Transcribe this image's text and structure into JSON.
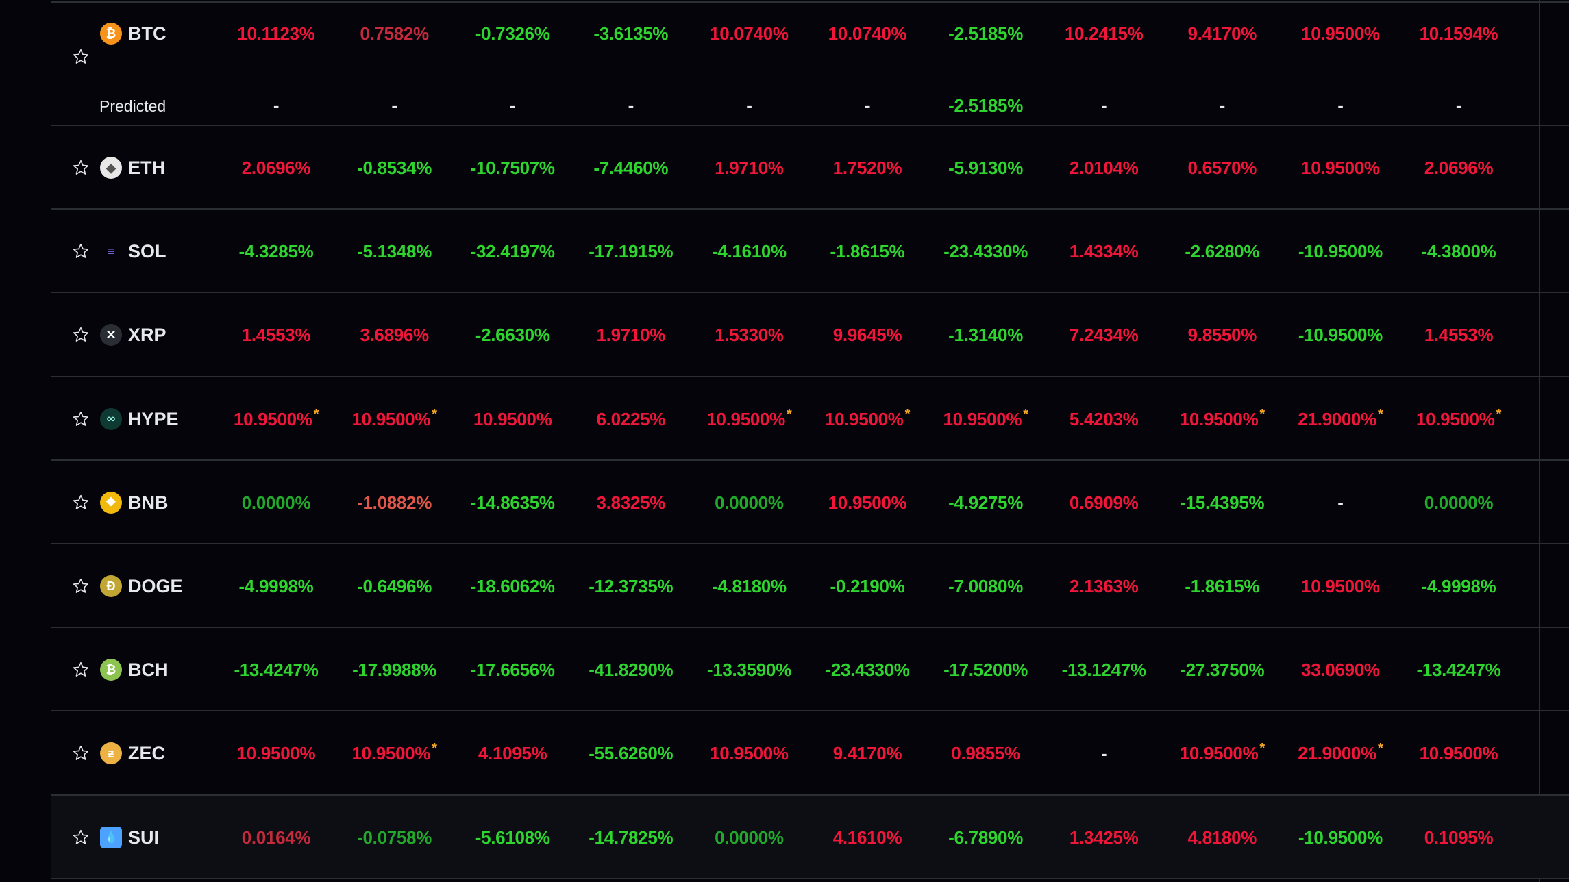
{
  "colors": {
    "up": "#f0163a",
    "up_muted": "#c42a3c",
    "down": "#2fd52f",
    "down_muted": "#22a82a",
    "salmon": "#e0584a",
    "asterisk": "#f5a623",
    "dash": "#e6e8ee"
  },
  "predicted_label": "Predicted",
  "rows": [
    {
      "symbol": "BTC",
      "icon": "bitcoin-icon",
      "icon_bg": "#f7931a",
      "glyph": "₿",
      "cells": [
        {
          "v": "10.1123%"
        },
        {
          "v": "0.7582%",
          "muted": true
        },
        {
          "v": "-0.7326%"
        },
        {
          "v": "-3.6135%"
        },
        {
          "v": "10.0740%"
        },
        {
          "v": "10.0740%"
        },
        {
          "v": "-2.5185%"
        },
        {
          "v": "10.2415%"
        },
        {
          "v": "9.4170%"
        },
        {
          "v": "10.9500%"
        },
        {
          "v": "10.1594%"
        }
      ],
      "predicted": [
        {
          "v": "-"
        },
        {
          "v": "-"
        },
        {
          "v": "-"
        },
        {
          "v": "-"
        },
        {
          "v": "-"
        },
        {
          "v": "-"
        },
        {
          "v": "-2.5185%"
        },
        {
          "v": "-"
        },
        {
          "v": "-"
        },
        {
          "v": "-"
        },
        {
          "v": "-"
        }
      ]
    },
    {
      "symbol": "ETH",
      "icon": "ethereum-icon",
      "icon_bg": "#e8e8e8",
      "glyph": "◆",
      "cells": [
        {
          "v": "2.0696%"
        },
        {
          "v": "-0.8534%"
        },
        {
          "v": "-10.7507%"
        },
        {
          "v": "-7.4460%"
        },
        {
          "v": "1.9710%"
        },
        {
          "v": "1.7520%"
        },
        {
          "v": "-5.9130%"
        },
        {
          "v": "2.0104%"
        },
        {
          "v": "0.6570%"
        },
        {
          "v": "10.9500%"
        },
        {
          "v": "2.0696%"
        }
      ]
    },
    {
      "symbol": "SOL",
      "icon": "solana-icon",
      "icon_bg": "transparent",
      "glyph": "≡",
      "cells": [
        {
          "v": "-4.3285%"
        },
        {
          "v": "-5.1348%"
        },
        {
          "v": "-32.4197%"
        },
        {
          "v": "-17.1915%"
        },
        {
          "v": "-4.1610%"
        },
        {
          "v": "-1.8615%"
        },
        {
          "v": "-23.4330%"
        },
        {
          "v": "1.4334%"
        },
        {
          "v": "-2.6280%"
        },
        {
          "v": "-10.9500%"
        },
        {
          "v": "-4.3800%"
        }
      ]
    },
    {
      "symbol": "XRP",
      "icon": "xrp-icon",
      "icon_bg": "#2a2d33",
      "glyph": "✕",
      "cells": [
        {
          "v": "1.4553%"
        },
        {
          "v": "3.6896%"
        },
        {
          "v": "-2.6630%"
        },
        {
          "v": "1.9710%"
        },
        {
          "v": "1.5330%"
        },
        {
          "v": "9.9645%"
        },
        {
          "v": "-1.3140%"
        },
        {
          "v": "7.2434%"
        },
        {
          "v": "9.8550%"
        },
        {
          "v": "-10.9500%"
        },
        {
          "v": "1.4553%"
        }
      ]
    },
    {
      "symbol": "HYPE",
      "icon": "hyperliquid-icon",
      "icon_bg": "#0f3a33",
      "glyph": "∞",
      "cells": [
        {
          "v": "10.9500%",
          "ast": true
        },
        {
          "v": "10.9500%",
          "ast": true
        },
        {
          "v": "10.9500%"
        },
        {
          "v": "6.0225%"
        },
        {
          "v": "10.9500%",
          "ast": true
        },
        {
          "v": "10.9500%",
          "ast": true
        },
        {
          "v": "10.9500%",
          "ast": true
        },
        {
          "v": "5.4203%"
        },
        {
          "v": "10.9500%",
          "ast": true
        },
        {
          "v": "21.9000%",
          "ast": true
        },
        {
          "v": "10.9500%",
          "ast": true
        }
      ]
    },
    {
      "symbol": "BNB",
      "icon": "bnb-icon",
      "icon_bg": "#f0b90b",
      "glyph": "❖",
      "cells": [
        {
          "v": "0.0000%",
          "muted": true
        },
        {
          "v": "-1.0882%",
          "salmon": true
        },
        {
          "v": "-14.8635%"
        },
        {
          "v": "3.8325%"
        },
        {
          "v": "0.0000%",
          "muted": true
        },
        {
          "v": "10.9500%"
        },
        {
          "v": "-4.9275%"
        },
        {
          "v": "0.6909%"
        },
        {
          "v": "-15.4395%"
        },
        {
          "v": "-"
        },
        {
          "v": "0.0000%",
          "muted": true
        }
      ]
    },
    {
      "symbol": "DOGE",
      "icon": "dogecoin-icon",
      "icon_bg": "#c2a633",
      "glyph": "Ð",
      "cells": [
        {
          "v": "-4.9998%"
        },
        {
          "v": "-0.6496%"
        },
        {
          "v": "-18.6062%"
        },
        {
          "v": "-12.3735%"
        },
        {
          "v": "-4.8180%"
        },
        {
          "v": "-0.2190%"
        },
        {
          "v": "-7.0080%"
        },
        {
          "v": "2.1363%"
        },
        {
          "v": "-1.8615%"
        },
        {
          "v": "10.9500%"
        },
        {
          "v": "-4.9998%"
        }
      ]
    },
    {
      "symbol": "BCH",
      "icon": "bitcoin-cash-icon",
      "icon_bg": "#8dc351",
      "glyph": "₿",
      "cells": [
        {
          "v": "-13.4247%"
        },
        {
          "v": "-17.9988%"
        },
        {
          "v": "-17.6656%"
        },
        {
          "v": "-41.8290%"
        },
        {
          "v": "-13.3590%"
        },
        {
          "v": "-23.4330%"
        },
        {
          "v": "-17.5200%"
        },
        {
          "v": "-13.1247%"
        },
        {
          "v": "-27.3750%"
        },
        {
          "v": "33.0690%"
        },
        {
          "v": "-13.4247%"
        }
      ]
    },
    {
      "symbol": "ZEC",
      "icon": "zcash-icon",
      "icon_bg": "#ecb244",
      "glyph": "ƶ",
      "cells": [
        {
          "v": "10.9500%"
        },
        {
          "v": "10.9500%",
          "ast": true
        },
        {
          "v": "4.1095%"
        },
        {
          "v": "-55.6260%"
        },
        {
          "v": "10.9500%"
        },
        {
          "v": "9.4170%"
        },
        {
          "v": "0.9855%"
        },
        {
          "v": "-"
        },
        {
          "v": "10.9500%",
          "ast": true
        },
        {
          "v": "21.9000%",
          "ast": true
        },
        {
          "v": "10.9500%"
        }
      ]
    },
    {
      "symbol": "SUI",
      "icon": "sui-icon",
      "icon_bg": "#4da2ff",
      "glyph": "💧",
      "highlight": true,
      "cells": [
        {
          "v": "0.0164%",
          "muted": true
        },
        {
          "v": "-0.0758%",
          "muted": true
        },
        {
          "v": "-5.6108%"
        },
        {
          "v": "-14.7825%"
        },
        {
          "v": "0.0000%",
          "muted": true
        },
        {
          "v": "4.1610%"
        },
        {
          "v": "-6.7890%"
        },
        {
          "v": "1.3425%"
        },
        {
          "v": "4.8180%"
        },
        {
          "v": "-10.9500%"
        },
        {
          "v": "0.1095%"
        }
      ]
    }
  ]
}
